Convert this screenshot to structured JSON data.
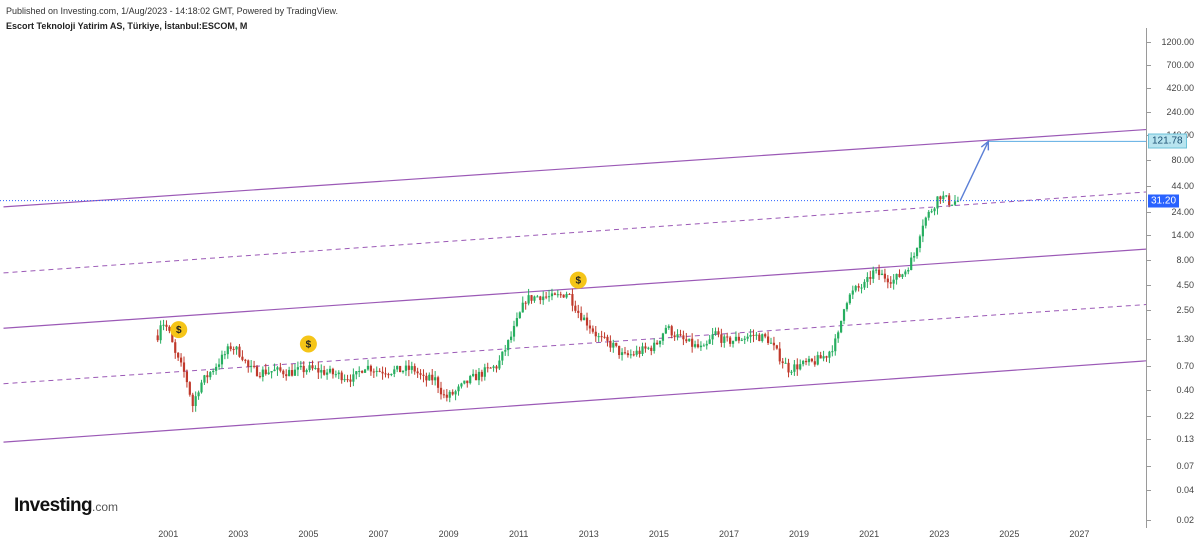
{
  "header": {
    "published": "Published on Investing.com, 1/Aug/2023 - 14:18:02 GMT, Powered by TradingView.",
    "title": "Escort Teknoloji Yatirim AS, Türkiye, İstanbul:ESCOM, M"
  },
  "logo": {
    "main": "Investing",
    "suffix": ".com"
  },
  "colors": {
    "channel": "#9b59b6",
    "candle_up": "#27ae60",
    "candle_down": "#c0392b",
    "current_line": "#2962ff",
    "target_line": "#5dade2",
    "target_arrow": "#5b7fd6",
    "dividend_marker": "#f5c518"
  },
  "chart_data": {
    "type": "candlestick",
    "symbol": "ESCOM",
    "interval": "M",
    "y_scale": "log",
    "ylim": [
      0.02,
      1200
    ],
    "xlim": [
      1996.2,
      2028.9
    ],
    "price_axis": {
      "ticks": [
        "1200.00",
        "700.00",
        "420.00",
        "240.00",
        "140.00",
        "80.00",
        "44.00",
        "24.00",
        "14.00",
        "8.00",
        "4.50",
        "2.50",
        "1.30",
        "0.70",
        "0.40",
        "0.22",
        "0.13",
        "0.07",
        "0.04",
        "0.02"
      ],
      "current_price": "31.20",
      "target_price": "121.78"
    },
    "time_axis": {
      "ticks": [
        "2001",
        "2003",
        "2005",
        "2007",
        "2009",
        "2011",
        "2013",
        "2015",
        "2017",
        "2019",
        "2021",
        "2023",
        "2025",
        "2027"
      ]
    },
    "price_path": [
      [
        2000.7,
        1.4
      ],
      [
        2000.8,
        2.0
      ],
      [
        2001.0,
        1.6
      ],
      [
        2001.2,
        0.9
      ],
      [
        2001.5,
        0.55
      ],
      [
        2001.7,
        0.28
      ],
      [
        2001.9,
        0.45
      ],
      [
        2002.2,
        0.6
      ],
      [
        2002.5,
        0.8
      ],
      [
        2002.8,
        1.1
      ],
      [
        2003.1,
        0.9
      ],
      [
        2003.3,
        0.65
      ],
      [
        2003.6,
        0.6
      ],
      [
        2004.0,
        0.62
      ],
      [
        2004.5,
        0.6
      ],
      [
        2005.0,
        0.65
      ],
      [
        2005.5,
        0.6
      ],
      [
        2006.0,
        0.55
      ],
      [
        2006.3,
        0.52
      ],
      [
        2006.6,
        0.7
      ],
      [
        2007.0,
        0.62
      ],
      [
        2007.5,
        0.62
      ],
      [
        2008.0,
        0.65
      ],
      [
        2008.3,
        0.5
      ],
      [
        2008.6,
        0.52
      ],
      [
        2008.9,
        0.33
      ],
      [
        2009.2,
        0.38
      ],
      [
        2009.6,
        0.5
      ],
      [
        2010.0,
        0.6
      ],
      [
        2010.4,
        0.7
      ],
      [
        2010.8,
        1.4
      ],
      [
        2011.2,
        3.2
      ],
      [
        2011.6,
        3.5
      ],
      [
        2012.0,
        3.3
      ],
      [
        2012.4,
        3.8
      ],
      [
        2012.7,
        2.4
      ],
      [
        2013.0,
        1.8
      ],
      [
        2013.3,
        1.3
      ],
      [
        2013.7,
        1.1
      ],
      [
        2014.0,
        0.85
      ],
      [
        2014.4,
        0.95
      ],
      [
        2014.9,
        1.1
      ],
      [
        2015.2,
        1.7
      ],
      [
        2015.6,
        1.3
      ],
      [
        2016.0,
        1.1
      ],
      [
        2016.3,
        1.0
      ],
      [
        2016.6,
        1.5
      ],
      [
        2016.9,
        1.2
      ],
      [
        2017.3,
        1.3
      ],
      [
        2017.7,
        1.4
      ],
      [
        2018.1,
        1.3
      ],
      [
        2018.4,
        0.9
      ],
      [
        2018.7,
        0.65
      ],
      [
        2019.0,
        0.7
      ],
      [
        2019.4,
        0.75
      ],
      [
        2019.8,
        0.9
      ],
      [
        2020.1,
        1.3
      ],
      [
        2020.3,
        3.0
      ],
      [
        2020.6,
        4.0
      ],
      [
        2020.9,
        4.5
      ],
      [
        2021.1,
        6.0
      ],
      [
        2021.4,
        5.5
      ],
      [
        2021.7,
        5.0
      ],
      [
        2022.0,
        6.0
      ],
      [
        2022.3,
        9.0
      ],
      [
        2022.5,
        18.0
      ],
      [
        2022.8,
        26.0
      ],
      [
        2023.0,
        36.0
      ],
      [
        2023.3,
        30.0
      ],
      [
        2023.6,
        31.2
      ]
    ],
    "channels": [
      {
        "style": "solid",
        "points": [
          [
            1996.3,
            27.0
          ],
          [
            2028.9,
            160.0
          ]
        ]
      },
      {
        "style": "dashed",
        "points": [
          [
            1996.3,
            5.9
          ],
          [
            2028.9,
            38.0
          ]
        ]
      },
      {
        "style": "solid",
        "points": [
          [
            1996.3,
            1.65
          ],
          [
            2028.9,
            10.2
          ]
        ]
      },
      {
        "style": "dashed",
        "points": [
          [
            1996.3,
            0.46
          ],
          [
            2028.9,
            2.85
          ]
        ]
      },
      {
        "style": "solid",
        "points": [
          [
            1996.3,
            0.12
          ],
          [
            2028.9,
            0.78
          ]
        ]
      }
    ],
    "projection": {
      "from": [
        2023.6,
        31.2
      ],
      "to": [
        2024.4,
        121.78
      ]
    },
    "dividend_markers": [
      [
        2001.3,
        1.6
      ],
      [
        2005.0,
        1.15
      ],
      [
        2012.7,
        5.0
      ]
    ]
  }
}
